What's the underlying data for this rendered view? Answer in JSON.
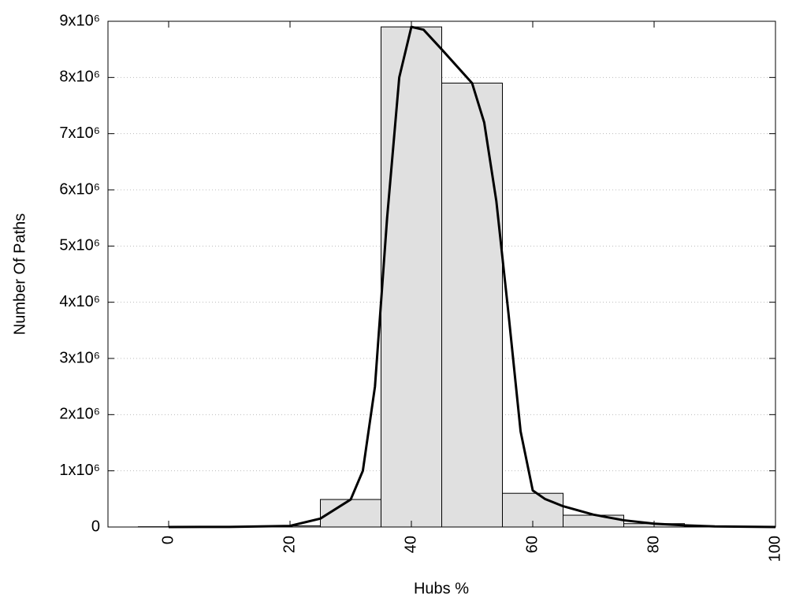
{
  "chart_data": {
    "type": "histogram",
    "xlabel": "Hubs %",
    "ylabel": "Number Of Paths",
    "bins": [
      -5,
      5,
      15,
      25,
      35,
      45,
      55,
      65,
      75,
      85,
      95
    ],
    "counts": [
      5000,
      5000,
      20000,
      490000,
      8900000,
      7900000,
      600000,
      210000,
      60000,
      10000
    ],
    "color": "#e0e0e0",
    "curve": {
      "color": "#000000",
      "x": [
        0,
        10,
        20,
        25,
        30,
        32,
        34,
        36,
        38,
        40,
        42,
        45,
        50,
        52,
        54,
        56,
        58,
        60,
        62,
        65,
        70,
        75,
        80,
        85,
        90,
        100
      ],
      "y": [
        0,
        2000,
        20000,
        150000,
        490000,
        1000000,
        2500000,
        5500000,
        8000000,
        8900000,
        8850000,
        8500000,
        7900000,
        7200000,
        5800000,
        3800000,
        1700000,
        650000,
        500000,
        370000,
        220000,
        120000,
        60000,
        30000,
        10000,
        0
      ]
    },
    "xlim": [
      -10,
      100
    ],
    "ylim": [
      0,
      9000000
    ],
    "xticks": [
      0,
      20,
      40,
      60,
      80,
      100
    ],
    "yticks": [
      0,
      {
        "value": 1000000,
        "label": "1x10⁶"
      },
      {
        "value": 2000000,
        "label": "2x10⁶"
      },
      {
        "value": 3000000,
        "label": "3x10⁶"
      },
      {
        "value": 4000000,
        "label": "4x10⁶"
      },
      {
        "value": 5000000,
        "label": "5x10⁶"
      },
      {
        "value": 6000000,
        "label": "6x10⁶"
      },
      {
        "value": 7000000,
        "label": "7x10⁶"
      },
      {
        "value": 8000000,
        "label": "8x10⁶"
      },
      {
        "value": 9000000,
        "label": "9x10⁶"
      }
    ],
    "grid": true
  }
}
